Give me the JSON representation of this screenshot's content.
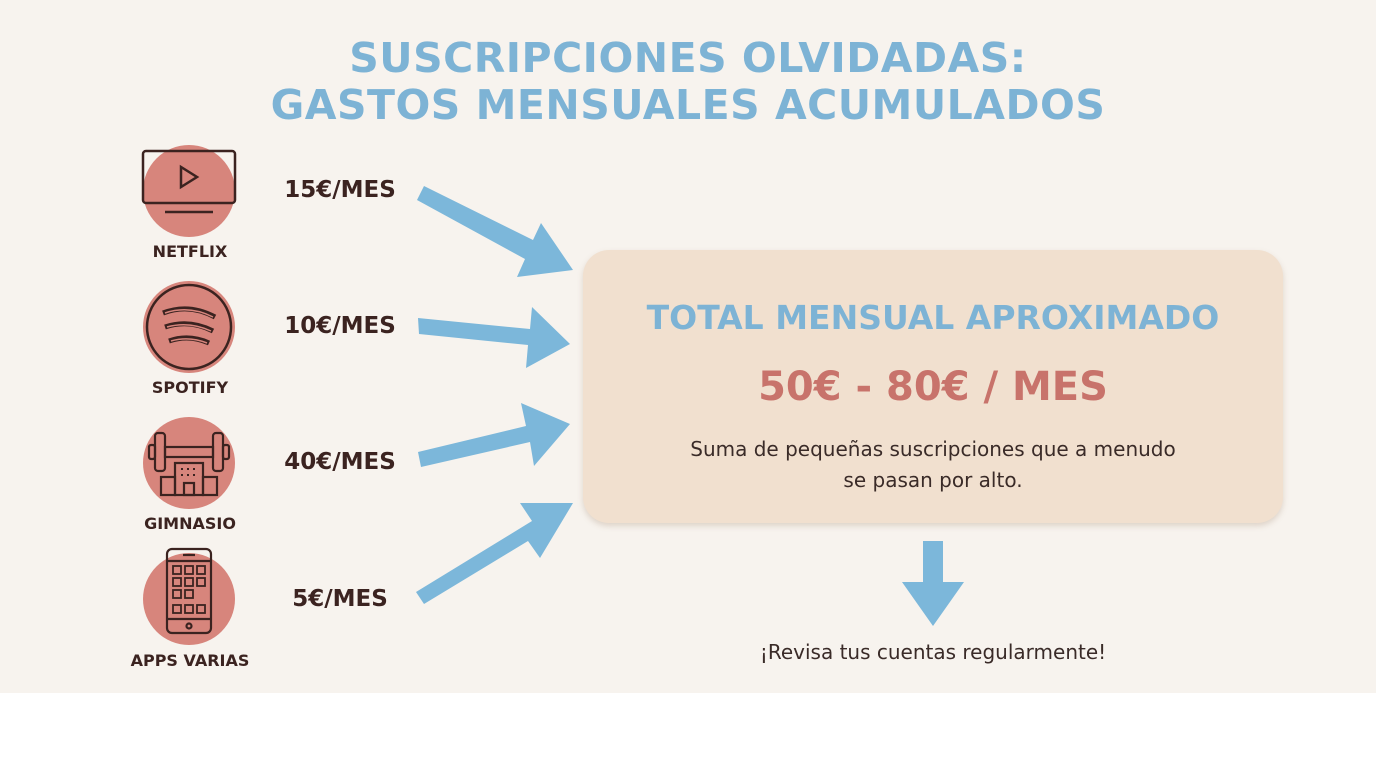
{
  "title": {
    "line1": "SUSCRIPCIONES OLVIDADAS:",
    "line2": "GASTOS MENSUALES ACUMULADOS"
  },
  "items": [
    {
      "label": "NETFLIX",
      "price": "15€/MES",
      "icon": "tv-play-icon"
    },
    {
      "label": "SPOTIFY",
      "price": "10€/MES",
      "icon": "spotify-icon"
    },
    {
      "label": "GIMNASIO",
      "price": "40€/MES",
      "icon": "gym-dumbbell-icon"
    },
    {
      "label": "APPS VARIAS",
      "price": "5€/MES",
      "icon": "smartphone-apps-icon"
    }
  ],
  "total": {
    "title": "TOTAL MENSUAL APROXIMADO",
    "range": "50€ - 80€ / MES",
    "description": "Suma de pequeñas suscripciones que a menudo se pasan por alto."
  },
  "footer": "¡Revisa tus cuentas regularmente!",
  "colors": {
    "title": "#7db3d5",
    "arrow": "#7cb7da",
    "icon_bg": "#d7857c",
    "box_bg": "#f1e0cf",
    "range": "#c8736b",
    "text_dark": "#3b2320"
  }
}
